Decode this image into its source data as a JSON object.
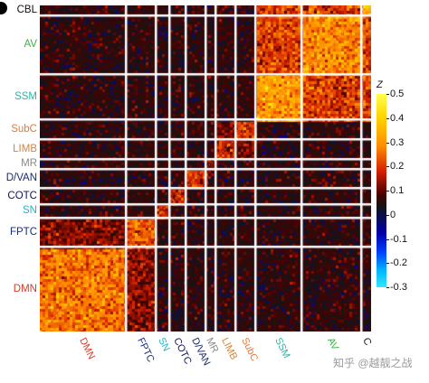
{
  "chart_data": {
    "type": "heatmap",
    "title": "",
    "matrix_kind": "symmetric network-by-network correlation matrix",
    "networks": [
      {
        "label": "CBL",
        "color": "#111111",
        "span": 0.03
      },
      {
        "label": "AV",
        "color": "#3cb043",
        "span": 0.18
      },
      {
        "label": "SSM",
        "color": "#2bb5a0",
        "span": 0.14
      },
      {
        "label": "SubC",
        "color": "#e07b39",
        "span": 0.06
      },
      {
        "label": "LIMB",
        "color": "#d4843a",
        "span": 0.06
      },
      {
        "label": "MR",
        "color": "#8a8a8a",
        "span": 0.03
      },
      {
        "label": "D/VAN",
        "color": "#1a2a6c",
        "span": 0.06
      },
      {
        "label": "COTC",
        "color": "#101060",
        "span": 0.05
      },
      {
        "label": "SN",
        "color": "#1fb6cf",
        "span": 0.04
      },
      {
        "label": "FPTC",
        "color": "#1a2a8a",
        "span": 0.09
      },
      {
        "label": "DMN",
        "color": "#d43a2a",
        "span": 0.26
      }
    ],
    "x_order": [
      "DMN",
      "FPTC",
      "SN",
      "COTC",
      "D/VAN",
      "MR",
      "LIMB",
      "SubC",
      "SSM",
      "AV",
      "CBL"
    ],
    "x_tick_labels": [
      "DMN",
      "FPTC",
      "SN",
      "COTC",
      "D/VAN",
      "MR",
      "LIMB",
      "SubC",
      "SSM",
      "AV",
      "C"
    ],
    "y_order": [
      "CBL",
      "AV",
      "SSM",
      "SubC",
      "LIMB",
      "MR",
      "D/VAN",
      "COTC",
      "SN",
      "FPTC",
      "DMN"
    ],
    "within_network_mean_z": {
      "CBL": 0.35,
      "AV": 0.3,
      "SSM": 0.32,
      "SubC": 0.22,
      "LIMB": 0.18,
      "MR": 0.12,
      "D/VAN": 0.2,
      "COTC": 0.18,
      "SN": 0.2,
      "FPTC": 0.25,
      "DMN": 0.28
    },
    "colorbar": {
      "label": "Z",
      "min": -0.3,
      "max": 0.5,
      "ticks": [
        0.5,
        0.4,
        0.3,
        0.2,
        0.1,
        0,
        -0.1,
        -0.2,
        -0.3
      ],
      "colors": [
        "#33e6ff",
        "#0040ff",
        "#0000aa",
        "#141414",
        "#4a0000",
        "#d42000",
        "#ff8c00",
        "#ffd400",
        "#ffff4d"
      ]
    },
    "grid": true,
    "legend_position": "right"
  },
  "watermark": "知乎 @越靓之战"
}
